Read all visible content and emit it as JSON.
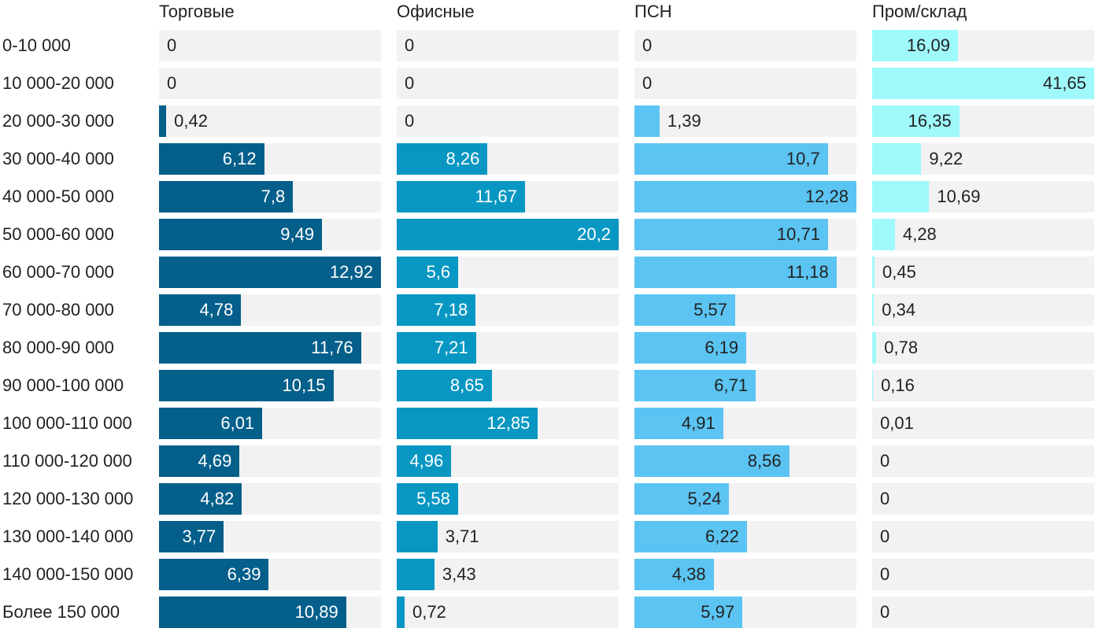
{
  "chart_data": {
    "type": "bar",
    "orientation": "horizontal",
    "layout": "small-multiples",
    "title": "",
    "categories": [
      "0-10 000",
      "10 000-20 000",
      "20 000-30 000",
      "30 000-40 000",
      "40 000-50 000",
      "50 000-60 000",
      "60 000-70 000",
      "70 000-80 000",
      "80 000-90 000",
      "90 000-100 000",
      "100 000-110 000",
      "110 000-120 000",
      "120 000-130 000",
      "130 000-140 000",
      "140 000-150 000",
      "Более 150 000"
    ],
    "series": [
      {
        "name": "Торговые",
        "color": "#045f8a",
        "max": 12.92,
        "values": [
          0,
          0,
          0.42,
          6.12,
          7.8,
          9.49,
          12.92,
          4.78,
          11.76,
          10.15,
          6.01,
          4.69,
          4.82,
          3.77,
          6.39,
          10.89
        ],
        "labels": [
          "0",
          "0",
          "0,42",
          "6,12",
          "7,8",
          "9,49",
          "12,92",
          "4,78",
          "11,76",
          "10,15",
          "6,01",
          "4,69",
          "4,82",
          "3,77",
          "6,39",
          "10,89"
        ]
      },
      {
        "name": "Офисные",
        "color": "#0797c2",
        "max": 20.2,
        "values": [
          0,
          0,
          0,
          8.26,
          11.67,
          20.2,
          5.6,
          7.18,
          7.21,
          8.65,
          12.85,
          4.96,
          5.58,
          3.71,
          3.43,
          0.72
        ],
        "labels": [
          "0",
          "0",
          "0",
          "8,26",
          "11,67",
          "20,2",
          "5,6",
          "7,18",
          "7,21",
          "8,65",
          "12,85",
          "4,96",
          "5,58",
          "3,71",
          "3,43",
          "0,72"
        ]
      },
      {
        "name": "ПСН",
        "color": "#5bc4f2",
        "max": 12.28,
        "values": [
          0,
          0,
          1.39,
          10.7,
          12.28,
          10.71,
          11.18,
          5.57,
          6.19,
          6.71,
          4.91,
          8.56,
          5.24,
          6.22,
          4.38,
          5.97
        ],
        "labels": [
          "0",
          "0",
          "1,39",
          "10,7",
          "12,28",
          "10,71",
          "11,18",
          "5,57",
          "6,19",
          "6,71",
          "4,91",
          "8,56",
          "5,24",
          "6,22",
          "4,38",
          "5,97"
        ]
      },
      {
        "name": "Пром/склад",
        "color": "#9ff9fb",
        "max": 41.65,
        "values": [
          16.09,
          41.65,
          16.35,
          9.22,
          10.69,
          4.28,
          0.45,
          0.34,
          0.78,
          0.16,
          0.01,
          0,
          0,
          0,
          0,
          0
        ],
        "labels": [
          "16,09",
          "41,65",
          "16,35",
          "9,22",
          "10,69",
          "4,28",
          "0,45",
          "0,34",
          "0,78",
          "0,16",
          "0,01",
          "0",
          "0",
          "0",
          "0",
          "0"
        ]
      }
    ],
    "value_label_colors": {
      "inside_dark": "#ffffff",
      "inside_light": "#222222",
      "outside": "#222222"
    },
    "grid": false,
    "legend": "none"
  }
}
